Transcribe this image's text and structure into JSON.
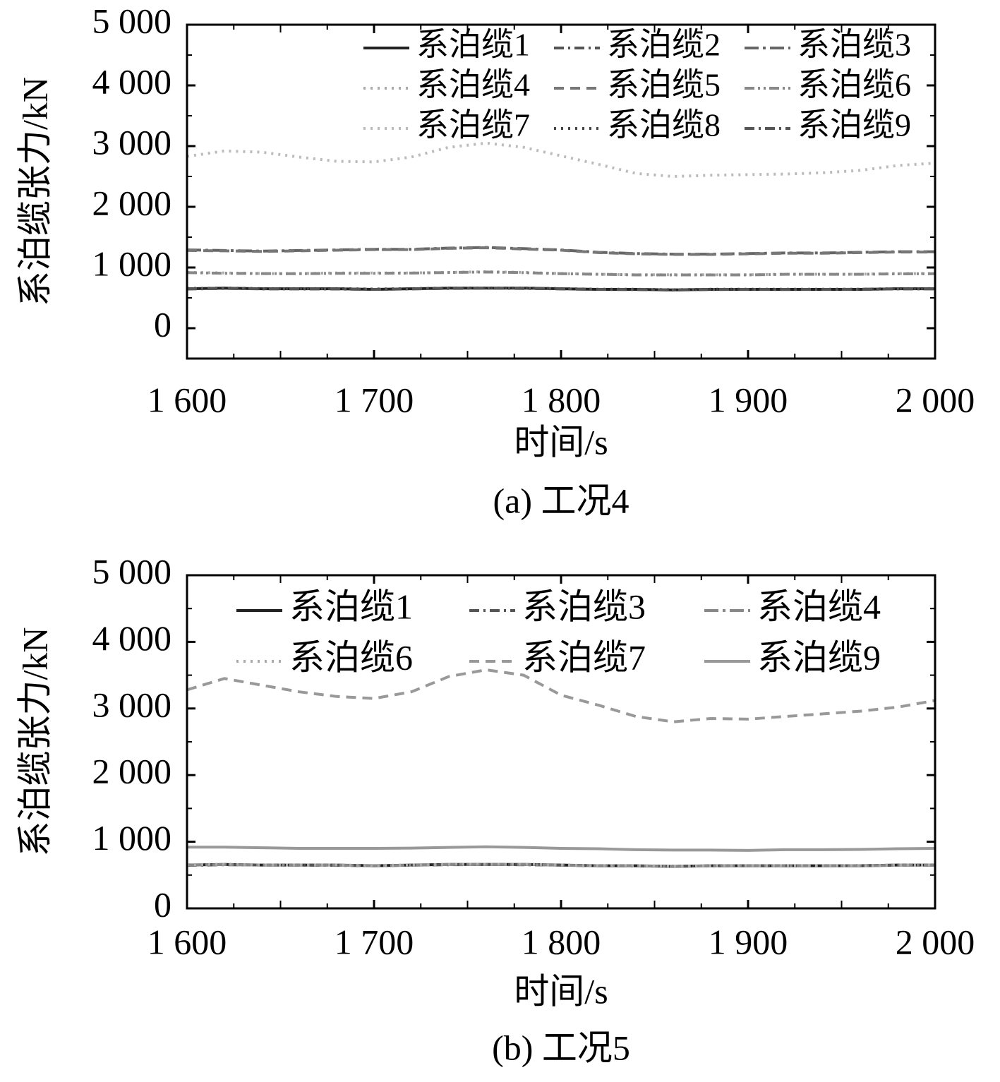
{
  "chart_data": [
    {
      "type": "line",
      "ylabel": "系泊缆张力/kN",
      "xlabel": "时间/s",
      "caption": "(a) 工况4",
      "legend": "upper right",
      "x": [
        1600,
        1620,
        1640,
        1660,
        1680,
        1700,
        1720,
        1740,
        1760,
        1780,
        1800,
        1820,
        1840,
        1860,
        1880,
        1900,
        1920,
        1940,
        1960,
        1980,
        2000
      ],
      "xlim": [
        1600,
        2000
      ],
      "xticks": [
        {
          "value": 1600,
          "label": "1 600"
        },
        {
          "value": 1700,
          "label": "1 700"
        },
        {
          "value": 1800,
          "label": "1 800"
        },
        {
          "value": 1900,
          "label": "1 900"
        },
        {
          "value": 2000,
          "label": "2 000"
        }
      ],
      "ylim": [
        -500,
        5000
      ],
      "yticks": [
        0,
        {
          "value": 1000,
          "label": "1 000"
        },
        {
          "value": 2000,
          "label": "2 000"
        },
        {
          "value": 3000,
          "label": "3 000"
        },
        {
          "value": 4000,
          "label": "4 000"
        },
        {
          "value": 5000,
          "label": "5 000"
        }
      ],
      "series": [
        {
          "name": "系泊缆1",
          "color": "#222222",
          "style": "solid",
          "values": [
            650,
            660,
            650,
            650,
            650,
            640,
            650,
            660,
            660,
            660,
            650,
            640,
            640,
            630,
            640,
            640,
            640,
            640,
            640,
            650,
            650
          ]
        },
        {
          "name": "系泊缆2",
          "color": "#555555",
          "style": "dashdot",
          "values": [
            645,
            655,
            650,
            648,
            645,
            640,
            648,
            655,
            658,
            655,
            648,
            640,
            636,
            632,
            638,
            640,
            638,
            640,
            642,
            648,
            648
          ]
        },
        {
          "name": "系泊缆3",
          "color": "#666666",
          "style": "longdashdot",
          "values": [
            1290,
            1280,
            1270,
            1280,
            1290,
            1300,
            1300,
            1320,
            1330,
            1310,
            1290,
            1250,
            1230,
            1220,
            1220,
            1230,
            1240,
            1240,
            1250,
            1260,
            1260
          ]
        },
        {
          "name": "系泊缆4",
          "color": "#aaaaaa",
          "style": "dot",
          "values": [
            920,
            910,
            900,
            900,
            910,
            910,
            910,
            920,
            930,
            920,
            900,
            890,
            880,
            880,
            880,
            880,
            890,
            890,
            890,
            900,
            900
          ]
        },
        {
          "name": "系泊缆5",
          "color": "#777777",
          "style": "dash",
          "values": [
            1280,
            1275,
            1265,
            1275,
            1285,
            1295,
            1295,
            1315,
            1325,
            1305,
            1285,
            1245,
            1225,
            1215,
            1215,
            1225,
            1235,
            1235,
            1245,
            1255,
            1255
          ]
        },
        {
          "name": "系泊缆6",
          "color": "#888888",
          "style": "dashdotdot",
          "values": [
            915,
            905,
            900,
            898,
            905,
            905,
            908,
            918,
            925,
            915,
            898,
            888,
            878,
            878,
            878,
            878,
            888,
            888,
            888,
            895,
            898
          ]
        },
        {
          "name": "系泊缆7",
          "color": "#bbbbbb",
          "style": "dot",
          "values": [
            2830,
            2920,
            2900,
            2820,
            2750,
            2740,
            2820,
            2980,
            3050,
            2980,
            2840,
            2700,
            2550,
            2500,
            2520,
            2530,
            2540,
            2560,
            2600,
            2680,
            2720
          ]
        },
        {
          "name": "系泊缆8",
          "color": "#444444",
          "style": "dot",
          "values": [
            655,
            662,
            652,
            652,
            652,
            645,
            652,
            662,
            662,
            662,
            652,
            642,
            642,
            634,
            642,
            642,
            642,
            642,
            642,
            652,
            652
          ]
        },
        {
          "name": "系泊缆9",
          "color": "#555555",
          "style": "dashdot",
          "values": [
            648,
            658,
            648,
            648,
            648,
            638,
            648,
            658,
            658,
            658,
            648,
            638,
            638,
            628,
            638,
            638,
            638,
            638,
            638,
            648,
            648
          ]
        }
      ]
    },
    {
      "type": "line",
      "ylabel": "系泊缆张力/kN",
      "xlabel": "时间/s",
      "caption": "(b) 工况5",
      "legend": "upper right",
      "x": [
        1600,
        1620,
        1640,
        1660,
        1680,
        1700,
        1720,
        1740,
        1760,
        1780,
        1800,
        1820,
        1840,
        1860,
        1880,
        1900,
        1920,
        1940,
        1960,
        1980,
        2000
      ],
      "xlim": [
        1600,
        2000
      ],
      "xticks": [
        {
          "value": 1600,
          "label": "1 600"
        },
        {
          "value": 1700,
          "label": "1 700"
        },
        {
          "value": 1800,
          "label": "1 800"
        },
        {
          "value": 1900,
          "label": "1 900"
        },
        {
          "value": 2000,
          "label": "2 000"
        }
      ],
      "ylim": [
        0,
        5000
      ],
      "yticks": [
        0,
        {
          "value": 1000,
          "label": "1 000"
        },
        {
          "value": 2000,
          "label": "2 000"
        },
        {
          "value": 3000,
          "label": "3 000"
        },
        {
          "value": 4000,
          "label": "4 000"
        },
        {
          "value": 5000,
          "label": "5 000"
        }
      ],
      "series": [
        {
          "name": "系泊缆1",
          "color": "#222222",
          "style": "solid",
          "values": [
            650,
            660,
            650,
            650,
            650,
            640,
            650,
            660,
            660,
            660,
            650,
            640,
            640,
            630,
            640,
            640,
            640,
            640,
            640,
            650,
            650
          ]
        },
        {
          "name": "系泊缆3",
          "color": "#555555",
          "style": "dashdot",
          "values": [
            645,
            655,
            650,
            648,
            645,
            640,
            648,
            655,
            658,
            655,
            648,
            640,
            636,
            632,
            638,
            640,
            638,
            640,
            642,
            648,
            648
          ]
        },
        {
          "name": "系泊缆4",
          "color": "#888888",
          "style": "longdashdot",
          "values": [
            648,
            658,
            648,
            648,
            648,
            638,
            648,
            658,
            658,
            658,
            648,
            638,
            638,
            628,
            638,
            638,
            638,
            638,
            638,
            648,
            648
          ]
        },
        {
          "name": "系泊缆6",
          "color": "#aaaaaa",
          "style": "dot",
          "values": [
            655,
            662,
            652,
            652,
            652,
            645,
            652,
            662,
            662,
            662,
            652,
            642,
            642,
            634,
            642,
            642,
            642,
            642,
            642,
            652,
            652
          ]
        },
        {
          "name": "系泊缆7",
          "color": "#999999",
          "style": "dash",
          "values": [
            3280,
            3450,
            3350,
            3250,
            3180,
            3150,
            3250,
            3480,
            3580,
            3500,
            3200,
            3050,
            2880,
            2800,
            2850,
            2840,
            2880,
            2920,
            2960,
            3020,
            3120
          ]
        },
        {
          "name": "系泊缆9",
          "color": "#999999",
          "style": "solid",
          "values": [
            920,
            920,
            910,
            900,
            900,
            900,
            905,
            915,
            925,
            915,
            900,
            895,
            880,
            875,
            875,
            870,
            880,
            880,
            885,
            895,
            900
          ]
        }
      ]
    }
  ]
}
